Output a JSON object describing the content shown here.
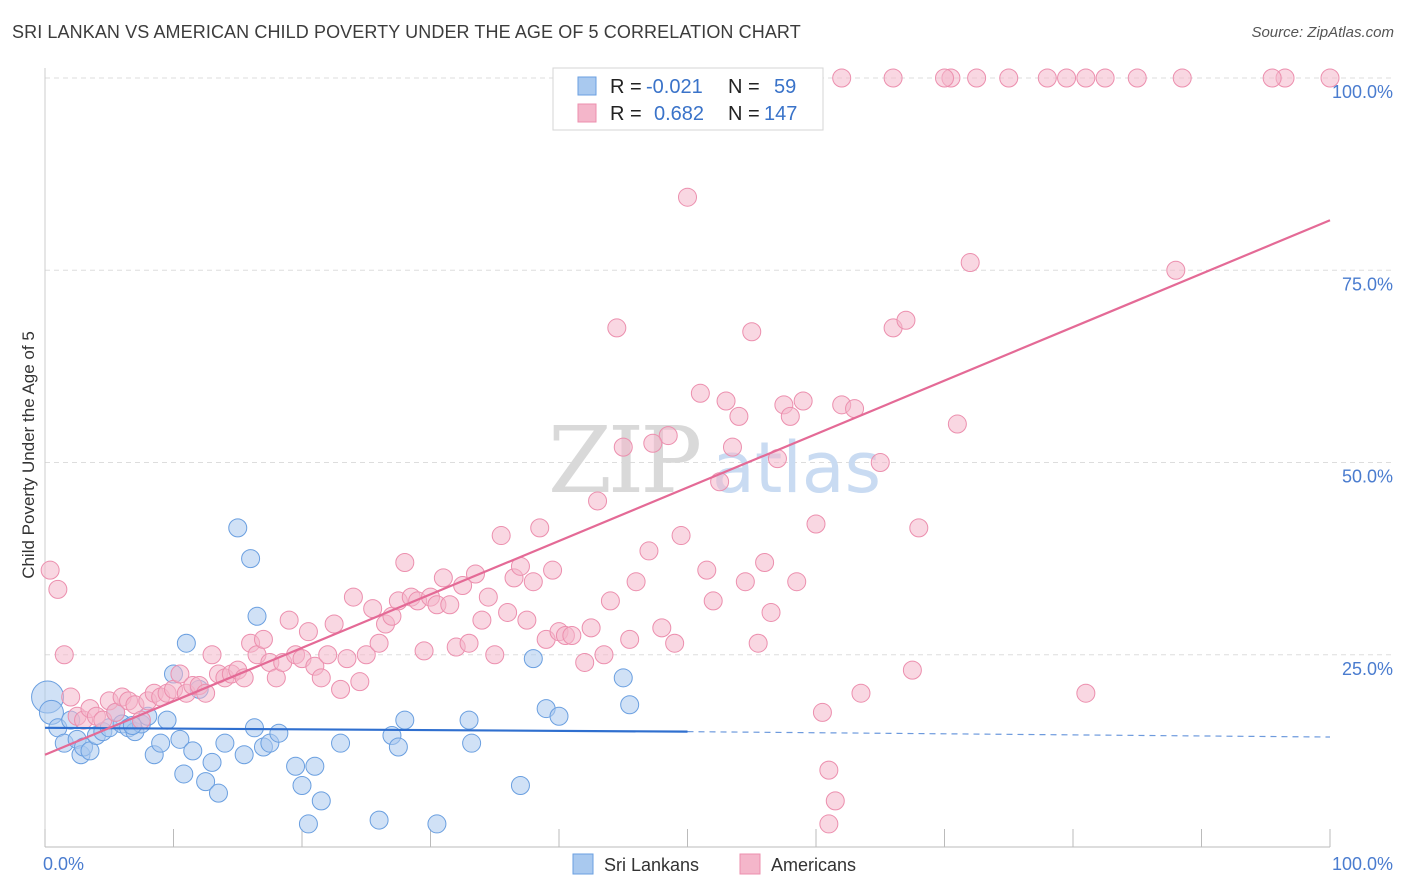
{
  "title": "SRI LANKAN VS AMERICAN CHILD POVERTY UNDER THE AGE OF 5 CORRELATION CHART",
  "source": "Source: ZipAtlas.com",
  "watermark": {
    "zip": "ZIP",
    "atlas": "atlas"
  },
  "colors": {
    "blue_fill": "#a9c9ef",
    "blue_stroke": "#6a9fe0",
    "blue_line": "#2f6fcf",
    "pink_fill": "#f4b6ca",
    "pink_stroke": "#ec8fae",
    "pink_line": "#e46a96",
    "grid": "#dddddd",
    "axis_text": "#4a7ccf"
  },
  "legend_box": {
    "rows": [
      {
        "r_label": "R =",
        "r_value": "-0.021",
        "n_label": "N =",
        "n_value": "59"
      },
      {
        "r_label": "R =",
        "r_value": "0.682",
        "n_label": "N =",
        "n_value": "147"
      }
    ]
  },
  "chart_data": {
    "type": "scatter",
    "title": "SRI LANKAN VS AMERICAN CHILD POVERTY UNDER THE AGE OF 5 CORRELATION CHART",
    "xlabel": "",
    "ylabel": "Child Poverty Under the Age of 5",
    "xlim": [
      0,
      100
    ],
    "ylim": [
      0,
      100
    ],
    "x_tick_labels": [
      "0.0%",
      "100.0%"
    ],
    "y_ticks": [
      25,
      50,
      75,
      100
    ],
    "y_tick_labels": [
      "25.0%",
      "50.0%",
      "75.0%",
      "100.0%"
    ],
    "grid": true,
    "legend_position": "bottom-center",
    "series": [
      {
        "name": "Sri Lankans",
        "color": "blue",
        "r": -0.021,
        "n": 59,
        "trend": {
          "x0": 0,
          "y0": 15.5,
          "x1": 50,
          "y1": 15.0,
          "dash_to_x": 100,
          "dash_to_y": 14.3
        },
        "points": [
          [
            0.2,
            19.5
          ],
          [
            0.5,
            17.5
          ],
          [
            1,
            15.5
          ],
          [
            1.5,
            13.5
          ],
          [
            2,
            16.5
          ],
          [
            2.5,
            14
          ],
          [
            2.8,
            12
          ],
          [
            3,
            13
          ],
          [
            3.5,
            12.5
          ],
          [
            4,
            14.5
          ],
          [
            4.5,
            15
          ],
          [
            5,
            15.5
          ],
          [
            5.5,
            17.5
          ],
          [
            6,
            16
          ],
          [
            6.5,
            15.5
          ],
          [
            7,
            15
          ],
          [
            7.5,
            16
          ],
          [
            8,
            17
          ],
          [
            8.5,
            12
          ],
          [
            9,
            13.5
          ],
          [
            9.5,
            16.5
          ],
          [
            10,
            22.5
          ],
          [
            10.5,
            14
          ],
          [
            10.8,
            9.5
          ],
          [
            11,
            26.5
          ],
          [
            11.5,
            12.5
          ],
          [
            12,
            20.5
          ],
          [
            12.5,
            8.5
          ],
          [
            13,
            11
          ],
          [
            13.5,
            7
          ],
          [
            14,
            13.5
          ],
          [
            15,
            41.5
          ],
          [
            15.5,
            12
          ],
          [
            16,
            37.5
          ],
          [
            16.5,
            30
          ],
          [
            17,
            13
          ],
          [
            17.5,
            13.5
          ],
          [
            19.5,
            10.5
          ],
          [
            20,
            8
          ],
          [
            20.5,
            3
          ],
          [
            21,
            10.5
          ],
          [
            21.5,
            6
          ],
          [
            23,
            13.5
          ],
          [
            26,
            3.5
          ],
          [
            27,
            14.5
          ],
          [
            27.5,
            13
          ],
          [
            28,
            16.5
          ],
          [
            30.5,
            3
          ],
          [
            33,
            16.5
          ],
          [
            33.2,
            13.5
          ],
          [
            37,
            8
          ],
          [
            38,
            24.5
          ],
          [
            39,
            18
          ],
          [
            40,
            17
          ],
          [
            45,
            22
          ],
          [
            45.5,
            18.5
          ],
          [
            16.3,
            15.5
          ],
          [
            18.2,
            14.8
          ],
          [
            6.8,
            15.8
          ]
        ]
      },
      {
        "name": "Americans",
        "color": "pink",
        "r": 0.682,
        "n": 147,
        "trend": {
          "x0": 0,
          "y0": 12,
          "x1": 100,
          "y1": 81.5
        },
        "points": [
          [
            0.4,
            36
          ],
          [
            1,
            33.5
          ],
          [
            1.5,
            25
          ],
          [
            2,
            19.5
          ],
          [
            2.5,
            17
          ],
          [
            3,
            16.5
          ],
          [
            3.5,
            18
          ],
          [
            4,
            17
          ],
          [
            4.5,
            16.5
          ],
          [
            5,
            19
          ],
          [
            5.5,
            17.5
          ],
          [
            6,
            19.5
          ],
          [
            6.5,
            19
          ],
          [
            7,
            18.5
          ],
          [
            7.5,
            16.5
          ],
          [
            8,
            19
          ],
          [
            8.5,
            20
          ],
          [
            9,
            19.5
          ],
          [
            9.5,
            20
          ],
          [
            10,
            20.5
          ],
          [
            10.5,
            22.5
          ],
          [
            11,
            20
          ],
          [
            11.5,
            21
          ],
          [
            12,
            21
          ],
          [
            12.5,
            20
          ],
          [
            13,
            25
          ],
          [
            13.5,
            22.5
          ],
          [
            14,
            22
          ],
          [
            14.5,
            22.5
          ],
          [
            15,
            23
          ],
          [
            15.5,
            22
          ],
          [
            16,
            26.5
          ],
          [
            16.5,
            25
          ],
          [
            17,
            27
          ],
          [
            17.5,
            24
          ],
          [
            18,
            22
          ],
          [
            18.5,
            24
          ],
          [
            19,
            29.5
          ],
          [
            19.5,
            25
          ],
          [
            20,
            24.5
          ],
          [
            20.5,
            28
          ],
          [
            21,
            23.5
          ],
          [
            21.5,
            22
          ],
          [
            22,
            25
          ],
          [
            22.5,
            29
          ],
          [
            23,
            20.5
          ],
          [
            23.5,
            24.5
          ],
          [
            24,
            32.5
          ],
          [
            24.5,
            21.5
          ],
          [
            25,
            25
          ],
          [
            25.5,
            31
          ],
          [
            26,
            26.5
          ],
          [
            26.5,
            29
          ],
          [
            27,
            30
          ],
          [
            27.5,
            32
          ],
          [
            28,
            37
          ],
          [
            28.5,
            32.5
          ],
          [
            29,
            32
          ],
          [
            29.5,
            25.5
          ],
          [
            30,
            32.5
          ],
          [
            30.5,
            31.5
          ],
          [
            31,
            35
          ],
          [
            31.5,
            31.5
          ],
          [
            32,
            26
          ],
          [
            32.5,
            34
          ],
          [
            33,
            26.5
          ],
          [
            33.5,
            35.5
          ],
          [
            34,
            29.5
          ],
          [
            34.5,
            32.5
          ],
          [
            35,
            25
          ],
          [
            35.5,
            40.5
          ],
          [
            36,
            30.5
          ],
          [
            36.5,
            35
          ],
          [
            37,
            36.5
          ],
          [
            37.5,
            29.5
          ],
          [
            38,
            34.5
          ],
          [
            38.5,
            41.5
          ],
          [
            39,
            27
          ],
          [
            39.5,
            36
          ],
          [
            40,
            28
          ],
          [
            40.5,
            27.5
          ],
          [
            41,
            27.5
          ],
          [
            42,
            24
          ],
          [
            42.5,
            28.5
          ],
          [
            43,
            45
          ],
          [
            43.5,
            25
          ],
          [
            44,
            32
          ],
          [
            45,
            52
          ],
          [
            45.5,
            27
          ],
          [
            46,
            34.5
          ],
          [
            47,
            38.5
          ],
          [
            48,
            28.5
          ],
          [
            48.5,
            53.5
          ],
          [
            49,
            26.5
          ],
          [
            49.5,
            40.5
          ],
          [
            50,
            84.5
          ],
          [
            51,
            59
          ],
          [
            51.5,
            36
          ],
          [
            52,
            32
          ],
          [
            52.5,
            47.5
          ],
          [
            53,
            58
          ],
          [
            53.5,
            52
          ],
          [
            54,
            56
          ],
          [
            54.5,
            34.5
          ],
          [
            55,
            67
          ],
          [
            55.5,
            26.5
          ],
          [
            56,
            37
          ],
          [
            56.5,
            30.5
          ],
          [
            57,
            50.5
          ],
          [
            57.5,
            57.5
          ],
          [
            58,
            56
          ],
          [
            58.5,
            34.5
          ],
          [
            59,
            58
          ],
          [
            60,
            42
          ],
          [
            60.5,
            17.5
          ],
          [
            61,
            10
          ],
          [
            61.5,
            6
          ],
          [
            62,
            57.5
          ],
          [
            63,
            57
          ],
          [
            63.5,
            20
          ],
          [
            65,
            50
          ],
          [
            66,
            67.5
          ],
          [
            67,
            68.5
          ],
          [
            67.5,
            23
          ],
          [
            68,
            41.5
          ],
          [
            71,
            55
          ],
          [
            72,
            76
          ],
          [
            81,
            20
          ],
          [
            88,
            75
          ],
          [
            44.5,
            67.5
          ],
          [
            47.3,
            52.5
          ],
          [
            61,
            3
          ],
          [
            96.5,
            100
          ],
          [
            100,
            100
          ],
          [
            95.5,
            100
          ],
          [
            88.5,
            100
          ],
          [
            85,
            100
          ],
          [
            82.5,
            100
          ],
          [
            81,
            100
          ],
          [
            79.5,
            100
          ],
          [
            78,
            100
          ],
          [
            75,
            100
          ],
          [
            72.5,
            100
          ],
          [
            70.5,
            100
          ],
          [
            70,
            100
          ],
          [
            66,
            100
          ],
          [
            62,
            100
          ]
        ]
      }
    ]
  }
}
